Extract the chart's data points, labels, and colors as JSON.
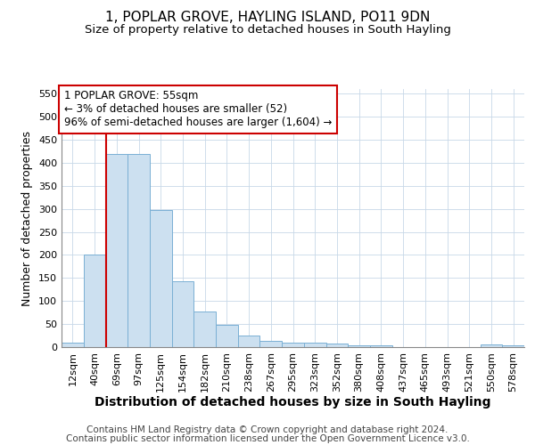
{
  "title": "1, POPLAR GROVE, HAYLING ISLAND, PO11 9DN",
  "subtitle": "Size of property relative to detached houses in South Hayling",
  "xlabel": "Distribution of detached houses by size in South Hayling",
  "ylabel": "Number of detached properties",
  "categories": [
    "12sqm",
    "40sqm",
    "69sqm",
    "97sqm",
    "125sqm",
    "154sqm",
    "182sqm",
    "210sqm",
    "238sqm",
    "267sqm",
    "295sqm",
    "323sqm",
    "352sqm",
    "380sqm",
    "408sqm",
    "437sqm",
    "465sqm",
    "493sqm",
    "521sqm",
    "550sqm",
    "578sqm"
  ],
  "values": [
    10,
    200,
    420,
    420,
    297,
    143,
    78,
    48,
    25,
    13,
    10,
    9,
    8,
    4,
    4,
    0,
    0,
    0,
    0,
    5,
    4
  ],
  "bar_color": "#cce0f0",
  "bar_edge_color": "#7ab0d4",
  "red_line_x": 1.52,
  "red_line_color": "#cc0000",
  "annotation_text": "1 POPLAR GROVE: 55sqm\n← 3% of detached houses are smaller (52)\n96% of semi-detached houses are larger (1,604) →",
  "annotation_box_color": "#ffffff",
  "annotation_box_edge": "#cc0000",
  "footnote_line1": "Contains HM Land Registry data © Crown copyright and database right 2024.",
  "footnote_line2": "Contains public sector information licensed under the Open Government Licence v3.0.",
  "ylim": [
    0,
    560
  ],
  "yticks": [
    0,
    50,
    100,
    150,
    200,
    250,
    300,
    350,
    400,
    450,
    500,
    550
  ],
  "grid_color": "#c8d8e8",
  "background_color": "#ffffff",
  "title_fontsize": 11,
  "subtitle_fontsize": 9.5,
  "xlabel_fontsize": 10,
  "ylabel_fontsize": 9,
  "tick_fontsize": 8,
  "annotation_fontsize": 8.5,
  "footnote_fontsize": 7.5
}
